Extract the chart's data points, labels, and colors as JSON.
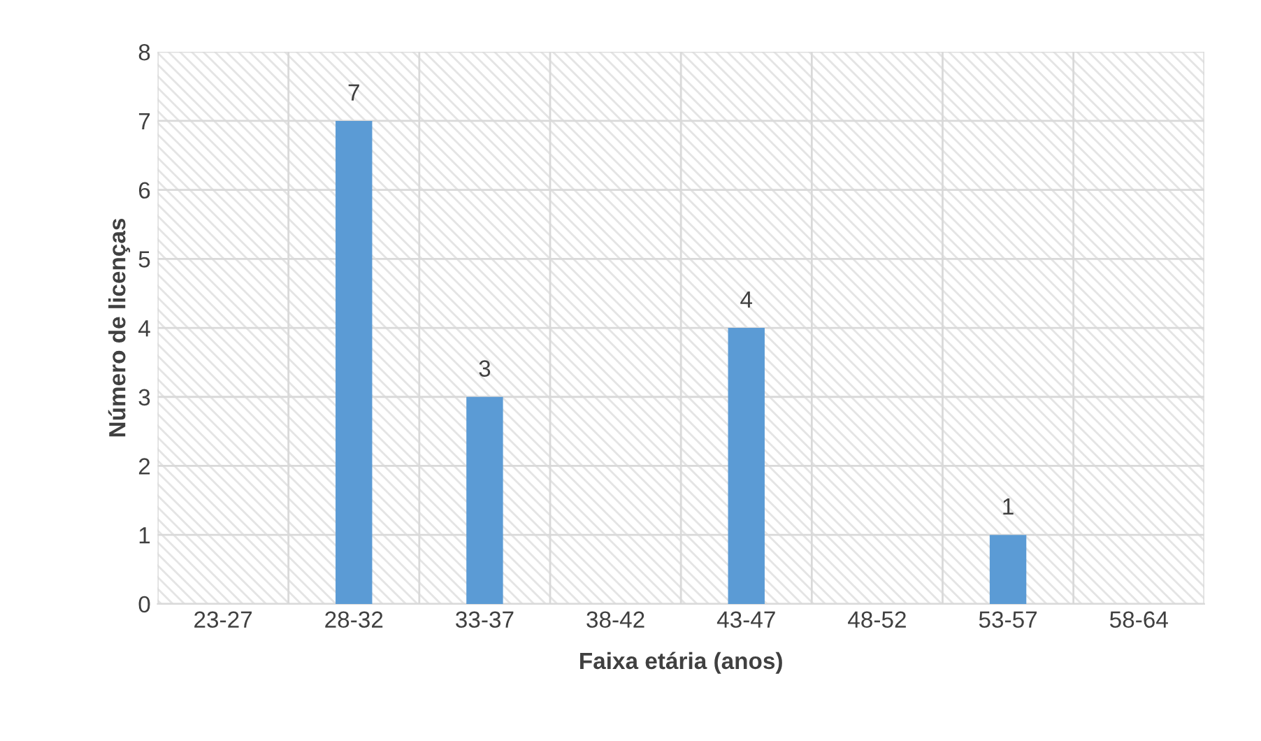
{
  "chart_data": {
    "type": "bar",
    "xlabel": "Faixa etária (anos)",
    "ylabel": "Número de licenças",
    "categories": [
      "23-27",
      "28-32",
      "33-37",
      "38-42",
      "43-47",
      "48-52",
      "53-57",
      "58-64"
    ],
    "values": [
      0,
      7,
      3,
      0,
      4,
      0,
      1,
      0
    ],
    "value_labels": [
      null,
      "7",
      "3",
      null,
      "4",
      null,
      "1",
      null
    ],
    "color": "#5b9bd5",
    "ylim": [
      0,
      8
    ],
    "yticks": [
      0,
      1,
      2,
      3,
      4,
      5,
      6,
      7,
      8
    ],
    "grid": true,
    "legend": false
  }
}
